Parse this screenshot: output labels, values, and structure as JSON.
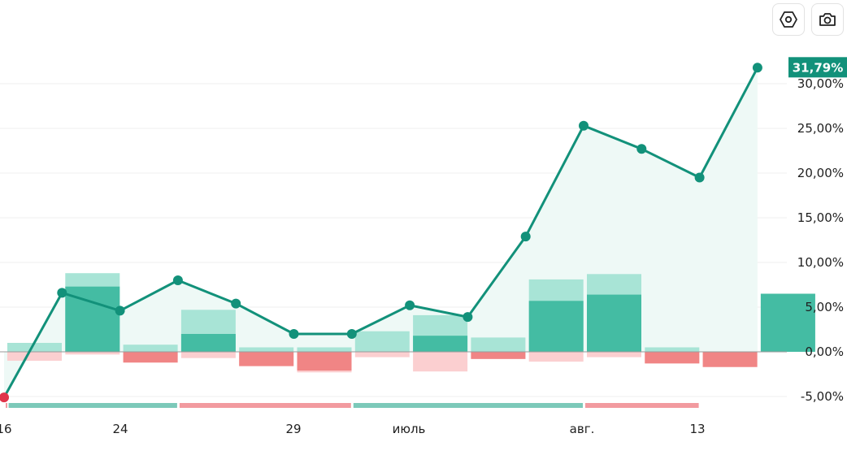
{
  "toolbar": {
    "settings_icon": "hexagon-settings-icon",
    "screenshot_icon": "camera-icon"
  },
  "colors": {
    "line": "#12917a",
    "negative_point": "#e0344a",
    "bar_pos_dark": "#44bca3",
    "bar_pos_light": "#a8e4d6",
    "bar_neg_dark": "#f08585",
    "bar_neg_light": "#fbcfd0",
    "area_fill": "#eef9f6",
    "badge": "#12917a",
    "grid": "#efefef",
    "strip_pos": "#7cc9b9",
    "strip_neg": "#f29a9f"
  },
  "chart_data": {
    "type": "bar+line",
    "y_unit": "%",
    "ylim": [
      -6.5,
      33.5
    ],
    "y_ticks": [
      30,
      25,
      20,
      15,
      10,
      5,
      0,
      -5
    ],
    "y_tick_labels": [
      "30,00%",
      "25,00%",
      "20,00%",
      "15,00%",
      "10,00%",
      "5,00%",
      "0,00%",
      "-5,00%"
    ],
    "x_tick_labels": [
      "16",
      "24",
      "29",
      "июль",
      "авг.",
      "13"
    ],
    "last_value_label": "31,79%",
    "bars": [
      {
        "pos_dark": 0,
        "pos_light": 1.0,
        "neg_dark": 0,
        "neg_light": -1.0
      },
      {
        "pos_dark": 7.3,
        "pos_light": 8.8,
        "neg_dark": 0,
        "neg_light": -0.3
      },
      {
        "pos_dark": 0,
        "pos_light": 0.8,
        "neg_dark": -1.2,
        "neg_light": -1.2
      },
      {
        "pos_dark": 2.0,
        "pos_light": 4.7,
        "neg_dark": 0,
        "neg_light": -0.7
      },
      {
        "pos_dark": 0,
        "pos_light": 0.5,
        "neg_dark": -1.6,
        "neg_light": -1.6
      },
      {
        "pos_dark": 0,
        "pos_light": 0.5,
        "neg_dark": -2.1,
        "neg_light": -2.3
      },
      {
        "pos_dark": 0,
        "pos_light": 2.3,
        "neg_dark": 0,
        "neg_light": -0.6
      },
      {
        "pos_dark": 1.8,
        "pos_light": 4.1,
        "neg_dark": 0,
        "neg_light": -2.2
      },
      {
        "pos_dark": 0,
        "pos_light": 1.6,
        "neg_dark": -0.8,
        "neg_light": -0.8
      },
      {
        "pos_dark": 5.7,
        "pos_light": 8.1,
        "neg_dark": 0,
        "neg_light": -1.1
      },
      {
        "pos_dark": 6.4,
        "pos_light": 8.7,
        "neg_dark": 0,
        "neg_light": -0.6
      },
      {
        "pos_dark": 0,
        "pos_light": 0.5,
        "neg_dark": -1.3,
        "neg_light": -1.3
      },
      {
        "pos_dark": 0,
        "pos_light": 0,
        "neg_dark": -1.7,
        "neg_light": -1.7
      },
      {
        "pos_dark": 6.5,
        "pos_light": 6.5,
        "neg_dark": 0,
        "neg_light": 0
      }
    ],
    "line": [
      -5.1,
      6.6,
      4.6,
      8.0,
      5.4,
      2.0,
      2.0,
      5.2,
      3.9,
      12.9,
      25.3,
      22.7,
      19.5,
      31.79
    ],
    "strip": [
      {
        "sign": "neg",
        "from": 0,
        "to": 0.05
      },
      {
        "sign": "pos",
        "from": 0.05,
        "to": 3.0
      },
      {
        "sign": "neg",
        "from": 3.0,
        "to": 6.0
      },
      {
        "sign": "pos",
        "from": 6.0,
        "to": 10.0
      },
      {
        "sign": "neg",
        "from": 10.0,
        "to": 12.0
      }
    ]
  }
}
